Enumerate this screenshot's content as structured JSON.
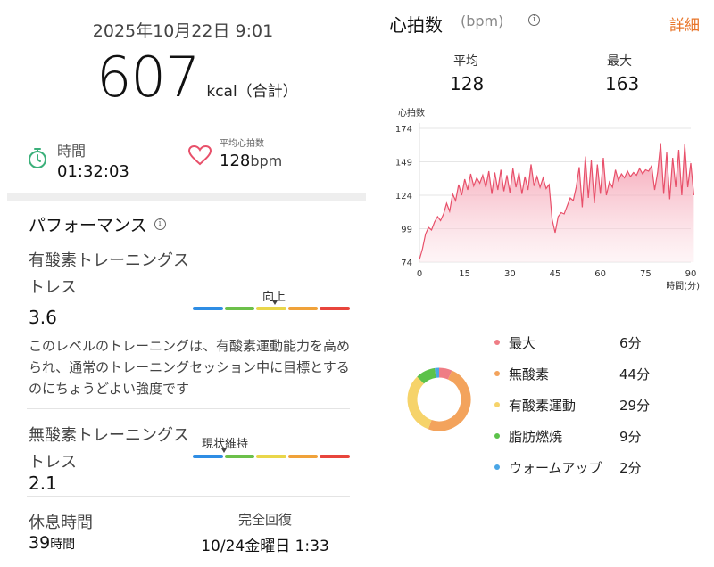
{
  "summary": {
    "datetime": "2025年10月22日 9:01",
    "calories": "607",
    "calories_unit": "kcal（合計）",
    "duration_label": "時間",
    "duration_value": "01:32:03",
    "avg_hr_label": "平均心拍数",
    "avg_hr_value": "128",
    "avg_hr_unit": "bpm"
  },
  "performance": {
    "title": "パフォーマンス",
    "aerobic": {
      "title": "有酸素トレーニングストレス",
      "value": "3.6",
      "status": "向上",
      "level_fraction": 0.52,
      "description": "このレベルのトレーニングは、有酸素運動能力を高められ、通常のトレーニングセッション中に目標とするのにちょうどよい強度です"
    },
    "anaerobic": {
      "title": "無酸素トレーニングストレス",
      "value": "2.1",
      "status": "現状維持",
      "level_fraction": 0.2
    },
    "recovery": {
      "rest_label": "休息時間",
      "rest_value": "39",
      "rest_unit": "時間",
      "full_label": "完全回復",
      "full_value": "10/24金曜日 1:33"
    },
    "scale_colors": [
      "#2f8de4",
      "#6cc04a",
      "#e9d64a",
      "#f0a23a",
      "#e8453c"
    ]
  },
  "heart_rate": {
    "title": "心拍数",
    "unit": "(bpm)",
    "detail_link": "詳細",
    "avg_label": "平均",
    "avg_value": "128",
    "max_label": "最大",
    "max_value": "163"
  },
  "chart_data": {
    "type": "area",
    "ylabel": "心拍数",
    "xlabel": "時間(分)",
    "ylim": [
      74,
      174
    ],
    "xlim": [
      0,
      90
    ],
    "yticks": [
      174,
      149,
      124,
      99,
      74
    ],
    "xticks": [
      0,
      15,
      30,
      45,
      60,
      75,
      90
    ],
    "grid": true,
    "line_color": "#e8506a",
    "x": [
      0,
      1,
      2,
      3,
      4,
      5,
      6,
      7,
      8,
      9,
      10,
      11,
      12,
      13,
      14,
      15,
      16,
      17,
      18,
      19,
      20,
      21,
      22,
      23,
      24,
      25,
      26,
      27,
      28,
      29,
      30,
      31,
      32,
      33,
      34,
      35,
      36,
      37,
      38,
      39,
      40,
      41,
      42,
      43,
      44,
      45,
      46,
      47,
      48,
      49,
      50,
      51,
      52,
      53,
      54,
      55,
      56,
      57,
      58,
      59,
      60,
      61,
      62,
      63,
      64,
      65,
      66,
      67,
      68,
      69,
      70,
      71,
      72,
      73,
      74,
      75,
      76,
      77,
      78,
      79,
      80,
      81,
      82,
      83,
      84,
      85,
      86,
      87,
      88,
      89,
      90,
      91
    ],
    "values": [
      76,
      84,
      95,
      100,
      98,
      104,
      108,
      105,
      110,
      118,
      112,
      125,
      120,
      132,
      124,
      136,
      128,
      140,
      131,
      137,
      133,
      139,
      130,
      142,
      125,
      141,
      128,
      143,
      127,
      139,
      126,
      144,
      130,
      141,
      125,
      138,
      128,
      147,
      131,
      138,
      130,
      137,
      129,
      132,
      106,
      96,
      108,
      111,
      110,
      116,
      122,
      120,
      130,
      145,
      115,
      153,
      122,
      150,
      118,
      147,
      125,
      152,
      124,
      134,
      130,
      143,
      135,
      140,
      137,
      142,
      138,
      141,
      139,
      144,
      140,
      143,
      142,
      146,
      128,
      141,
      163,
      125,
      156,
      121,
      152,
      130,
      158,
      124,
      162,
      130,
      148,
      124
    ]
  },
  "zones": {
    "items": [
      {
        "name": "最大",
        "minutes": "6分",
        "value": 6,
        "color": "#ef7d85"
      },
      {
        "name": "無酸素",
        "minutes": "44分",
        "value": 44,
        "color": "#f3a35c"
      },
      {
        "name": "有酸素運動",
        "minutes": "29分",
        "value": 29,
        "color": "#f6d36a"
      },
      {
        "name": "脂肪燃焼",
        "minutes": "9分",
        "value": 9,
        "color": "#5cc24a"
      },
      {
        "name": "ウォームアップ",
        "minutes": "2分",
        "value": 2,
        "color": "#4aa6e6"
      }
    ]
  },
  "icons": {
    "timer": "stopwatch-icon",
    "heart": "heart-icon",
    "info": "info-icon"
  },
  "colors": {
    "accent": "#e8752a",
    "timer_icon": "#3bb07a",
    "heart_icon": "#e8506a"
  }
}
